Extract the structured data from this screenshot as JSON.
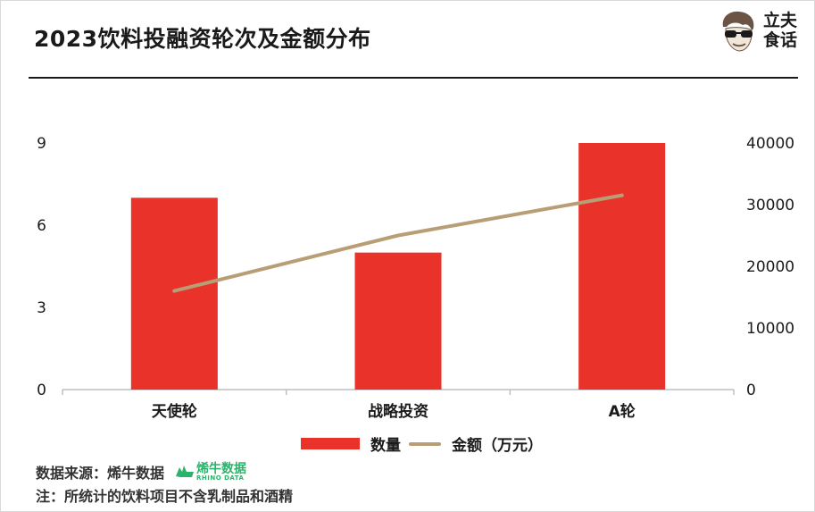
{
  "title": "2023饮料投融资轮次及金额分布",
  "logo": {
    "line1": "立夫",
    "line2": "食话"
  },
  "chart_data": {
    "type": "bar",
    "categories": [
      "天使轮",
      "战略投资",
      "A轮"
    ],
    "series": [
      {
        "name": "数量",
        "type": "bar",
        "axis": "left",
        "color": "#e8322a",
        "values": [
          7,
          5,
          9
        ]
      },
      {
        "name": "金额（万元）",
        "type": "line",
        "axis": "right",
        "color": "#b89e74",
        "values": [
          16000,
          25000,
          31500
        ]
      }
    ],
    "y_left": {
      "ylim": [
        0,
        9
      ],
      "ticks": [
        "0",
        "3",
        "6",
        "9"
      ]
    },
    "y_right": {
      "ylim": [
        0,
        40000
      ],
      "ticks": [
        "0",
        "10000",
        "20000",
        "30000",
        "40000"
      ]
    },
    "grid": false,
    "legend_position": "bottom"
  },
  "legend": {
    "bar_label": "数量",
    "line_label": "金额（万元）"
  },
  "source": {
    "label": "数据来源：烯牛数据",
    "brand_cn": "烯牛数据",
    "brand_en": "RHINO DATA"
  },
  "note": "注：所统计的饮料项目不含乳制品和酒精"
}
